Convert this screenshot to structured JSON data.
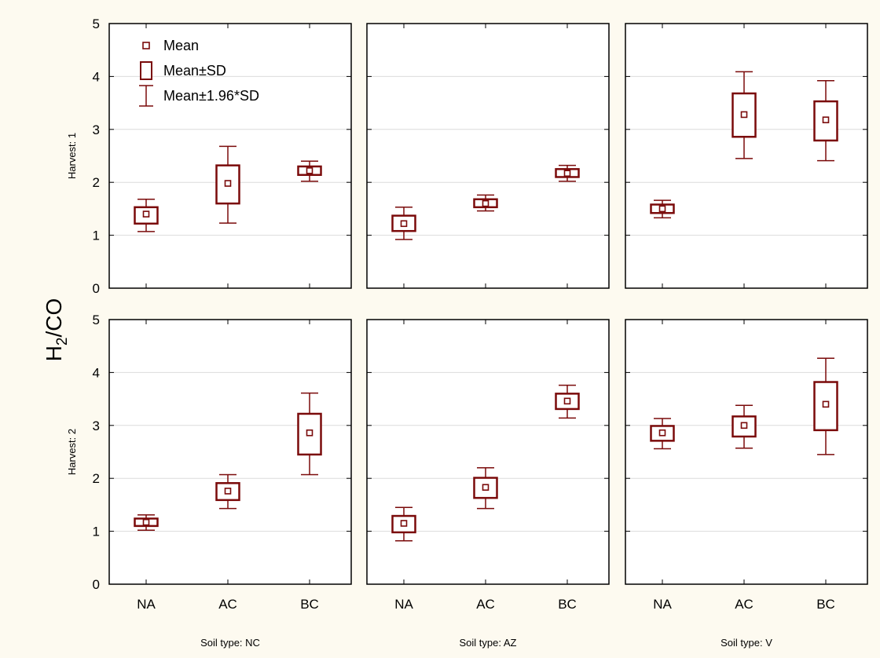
{
  "ylabel": "H2/CO",
  "ylabel_main": "H",
  "ylabel_sub": "2",
  "ylabel_rest": "/CO",
  "box_color": "#7a0a0a",
  "background": "#fdfaf0",
  "legend": [
    {
      "label": "Mean",
      "kind": "mean"
    },
    {
      "label": "Mean±SD",
      "kind": "box"
    },
    {
      "label": "Mean±1.96*SD",
      "kind": "whisker"
    }
  ],
  "chart_data": {
    "type": "box",
    "categories": [
      "NA",
      "AC",
      "BC"
    ],
    "ylim": [
      0,
      5
    ],
    "yticks": [
      "0",
      "1",
      "2",
      "3",
      "4",
      "5"
    ],
    "grid": true,
    "legend_position": "top-left",
    "columns": [
      "Soil type: NC",
      "Soil type: AZ",
      "Soil type: V"
    ],
    "rows": [
      "Harvest: 1",
      "Harvest: 2"
    ],
    "panels": [
      {
        "row": 0,
        "col": 0,
        "series": [
          {
            "category": "NA",
            "mean": 1.4,
            "sd_low": 1.22,
            "sd_high": 1.53,
            "ci_low": 1.07,
            "ci_high": 1.68
          },
          {
            "category": "AC",
            "mean": 1.98,
            "sd_low": 1.6,
            "sd_high": 2.32,
            "ci_low": 1.23,
            "ci_high": 2.68
          },
          {
            "category": "BC",
            "mean": 2.22,
            "sd_low": 2.14,
            "sd_high": 2.3,
            "ci_low": 2.02,
            "ci_high": 2.4
          }
        ]
      },
      {
        "row": 0,
        "col": 1,
        "series": [
          {
            "category": "NA",
            "mean": 1.22,
            "sd_low": 1.08,
            "sd_high": 1.37,
            "ci_low": 0.92,
            "ci_high": 1.53
          },
          {
            "category": "AC",
            "mean": 1.6,
            "sd_low": 1.53,
            "sd_high": 1.68,
            "ci_low": 1.46,
            "ci_high": 1.76
          },
          {
            "category": "BC",
            "mean": 2.17,
            "sd_low": 2.1,
            "sd_high": 2.25,
            "ci_low": 2.02,
            "ci_high": 2.32
          }
        ]
      },
      {
        "row": 0,
        "col": 2,
        "series": [
          {
            "category": "NA",
            "mean": 1.5,
            "sd_low": 1.42,
            "sd_high": 1.58,
            "ci_low": 1.33,
            "ci_high": 1.66
          },
          {
            "category": "AC",
            "mean": 3.28,
            "sd_low": 2.86,
            "sd_high": 3.68,
            "ci_low": 2.45,
            "ci_high": 4.09
          },
          {
            "category": "BC",
            "mean": 3.18,
            "sd_low": 2.79,
            "sd_high": 3.53,
            "ci_low": 2.41,
            "ci_high": 3.92
          }
        ]
      },
      {
        "row": 1,
        "col": 0,
        "series": [
          {
            "category": "NA",
            "mean": 1.17,
            "sd_low": 1.1,
            "sd_high": 1.24,
            "ci_low": 1.02,
            "ci_high": 1.31
          },
          {
            "category": "AC",
            "mean": 1.76,
            "sd_low": 1.59,
            "sd_high": 1.91,
            "ci_low": 1.43,
            "ci_high": 2.07
          },
          {
            "category": "BC",
            "mean": 2.86,
            "sd_low": 2.45,
            "sd_high": 3.22,
            "ci_low": 2.07,
            "ci_high": 3.61
          }
        ]
      },
      {
        "row": 1,
        "col": 1,
        "series": [
          {
            "category": "NA",
            "mean": 1.15,
            "sd_low": 0.98,
            "sd_high": 1.29,
            "ci_low": 0.82,
            "ci_high": 1.45
          },
          {
            "category": "AC",
            "mean": 1.83,
            "sd_low": 1.63,
            "sd_high": 2.01,
            "ci_low": 1.43,
            "ci_high": 2.2
          },
          {
            "category": "BC",
            "mean": 3.46,
            "sd_low": 3.31,
            "sd_high": 3.6,
            "ci_low": 3.14,
            "ci_high": 3.76
          }
        ]
      },
      {
        "row": 1,
        "col": 2,
        "series": [
          {
            "category": "NA",
            "mean": 2.86,
            "sd_low": 2.71,
            "sd_high": 2.99,
            "ci_low": 2.56,
            "ci_high": 3.13
          },
          {
            "category": "AC",
            "mean": 3.0,
            "sd_low": 2.79,
            "sd_high": 3.17,
            "ci_low": 2.57,
            "ci_high": 3.38
          },
          {
            "category": "BC",
            "mean": 3.4,
            "sd_low": 2.91,
            "sd_high": 3.82,
            "ci_low": 2.45,
            "ci_high": 4.27
          }
        ]
      }
    ]
  }
}
